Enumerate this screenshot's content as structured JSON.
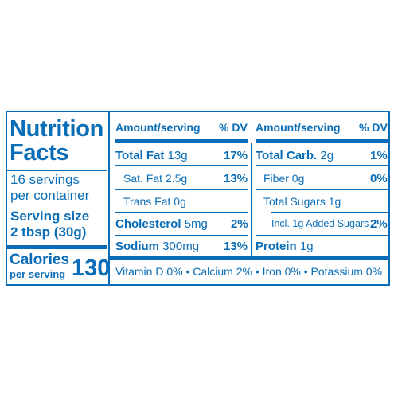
{
  "panel": {
    "title_line1": "Nutrition",
    "title_line2": "Facts",
    "servings_line1": "16 servings",
    "servings_line2": "per container",
    "serving_size_label": "Serving size",
    "serving_size_value": "2 tbsp (30g)",
    "calories_label": "Calories",
    "calories_sub": "per serving",
    "calories_value": "130"
  },
  "header": {
    "amount_label": "Amount/serving",
    "dv_label": "% DV"
  },
  "left_rows": [
    {
      "name": "Total Fat",
      "amount": "13g",
      "dv": "17%"
    },
    {
      "name": "Sat. Fat",
      "amount": "2.5g",
      "dv": "13%"
    },
    {
      "name": "Trans Fat",
      "amount": "0g",
      "dv": ""
    },
    {
      "name": "Cholesterol",
      "amount": "5mg",
      "dv": "2%"
    },
    {
      "name": "Sodium",
      "amount": "300mg",
      "dv": "13%"
    }
  ],
  "right_rows": [
    {
      "name": "Total Carb.",
      "amount": "2g",
      "dv": "1%"
    },
    {
      "name": "Fiber",
      "amount": "0g",
      "dv": "0%"
    },
    {
      "name": "Total Sugars",
      "amount": "1g",
      "dv": ""
    },
    {
      "name": "Incl. 1g Added Sugars",
      "amount": "",
      "dv": "2%"
    },
    {
      "name": "Protein",
      "amount": "1g",
      "dv": ""
    }
  ],
  "vitamins": "Vitamin D 0% • Calcium 2% • Iron 0% • Potassium 0%",
  "colors": {
    "ink": "#0a6db7",
    "background": "#ffffff"
  }
}
